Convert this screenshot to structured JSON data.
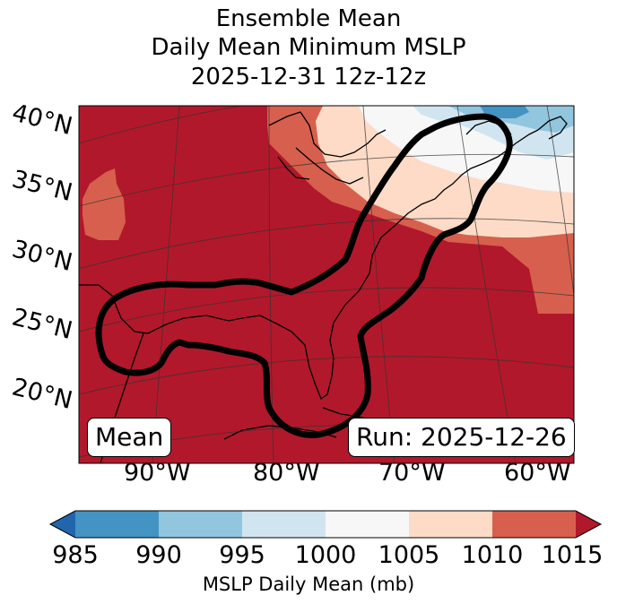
{
  "title": {
    "line1": "Ensemble Mean",
    "line2": "Daily Mean Minimum MSLP",
    "line3": "2025-12-31 12z-12z"
  },
  "map": {
    "lat_labels": [
      "40°N",
      "35°N",
      "30°N",
      "25°N",
      "20°N"
    ],
    "lon_labels": [
      "90°W",
      "80°W",
      "70°W",
      "60°W"
    ],
    "mean_box": "Mean",
    "run_box": "Run: 2025-12-26"
  },
  "colorbar": {
    "label": "MSLP Daily Mean (mb)",
    "ticks": [
      "985",
      "990",
      "995",
      "1000",
      "1005",
      "1010",
      "1015"
    ],
    "colors": {
      "below": "#2166ac",
      "c985_990": "#4393c3",
      "c990_995": "#92c5de",
      "c995_1000": "#d1e5f0",
      "c1000_1005": "#f7f7f7",
      "c1005_1010": "#fddbc7",
      "c1010_1015": "#d6604d",
      "above": "#b2182b"
    }
  }
}
